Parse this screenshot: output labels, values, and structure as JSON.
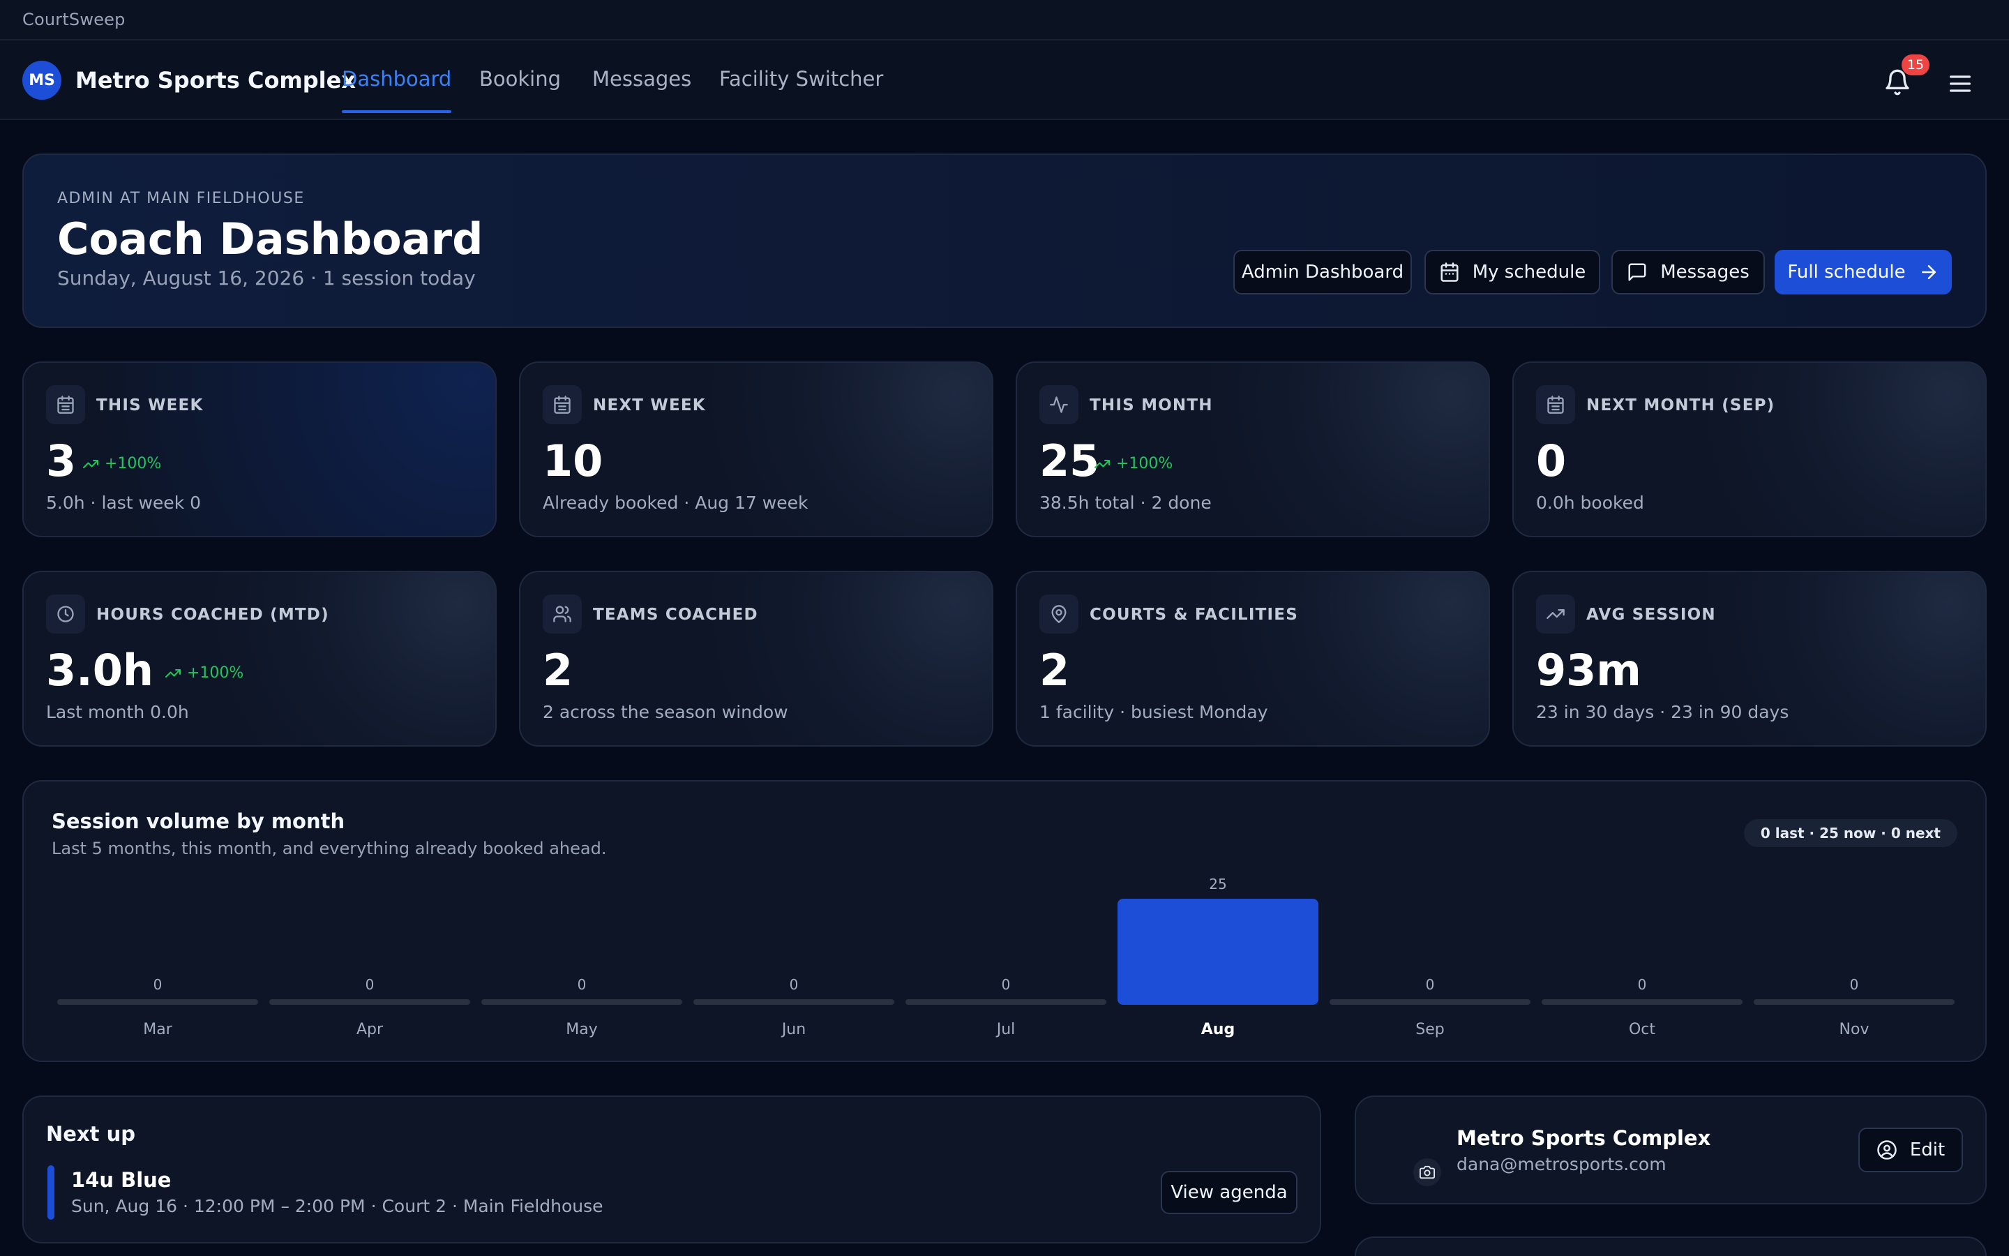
{
  "app": {
    "title": "CourtSweep"
  },
  "nav": {
    "avatar_initials": "MS",
    "org_name": "Metro Sports Complex",
    "tabs": [
      {
        "label": "Dashboard",
        "active": true
      },
      {
        "label": "Booking"
      },
      {
        "label": "Messages"
      },
      {
        "label": "Facility Switcher"
      }
    ],
    "notification_count": "15",
    "icons": {
      "notifications": "bell-icon",
      "menu": "hamburger-menu-icon"
    }
  },
  "hero": {
    "eyebrow": "ADMIN AT MAIN FIELDHOUSE",
    "title": "Coach Dashboard",
    "subtitle": "Sunday, August 16, 2026 · 1 session today",
    "buttons": {
      "admin": "Admin Dashboard",
      "schedule": "My schedule",
      "messages": "Messages",
      "full": "Full schedule"
    }
  },
  "stats": [
    {
      "label": "THIS WEEK",
      "icon": "calendar-icon",
      "value": "3",
      "delta": "+100%",
      "note": "5.0h · last week 0"
    },
    {
      "label": "NEXT WEEK",
      "icon": "calendar-icon",
      "value": "10",
      "note": "Already booked · Aug 17 week"
    },
    {
      "label": "THIS MONTH",
      "icon": "activity-icon",
      "value": "25",
      "delta": "+100%",
      "note": "38.5h total · 2 done"
    },
    {
      "label": "NEXT MONTH (SEP)",
      "icon": "calendar-icon",
      "value": "0",
      "note": "0.0h booked"
    },
    {
      "label": "HOURS COACHED (MTD)",
      "icon": "clock-icon",
      "value": "3.0h",
      "delta": "+100%",
      "note": "Last month 0.0h"
    },
    {
      "label": "TEAMS COACHED",
      "icon": "users-icon",
      "value": "2",
      "note": "2 across the season window"
    },
    {
      "label": "COURTS & FACILITIES",
      "icon": "map-pin-icon",
      "value": "2",
      "note": "1 facility · busiest Monday"
    },
    {
      "label": "AVG SESSION",
      "icon": "trending-up-icon",
      "value": "93m",
      "note": "23 in 30 days · 23 in 90 days"
    }
  ],
  "chart": {
    "title": "Session volume by month",
    "subtitle": "Last 5 months, this month, and everything already booked ahead.",
    "summary_pill": "0 last · 25 now · 0 next"
  },
  "chart_data": {
    "type": "bar",
    "categories": [
      "Mar",
      "Apr",
      "May",
      "Jun",
      "Jul",
      "Aug",
      "Sep",
      "Oct",
      "Nov"
    ],
    "values": [
      0,
      0,
      0,
      0,
      0,
      25,
      0,
      0,
      0
    ],
    "highlight": "Aug",
    "colors": {
      "highlight": "#1d4ed8",
      "empty": "#2a3242"
    }
  },
  "next_up": {
    "title": "Next up",
    "team": "14u Blue",
    "detail": "Sun, Aug 16 · 12:00 PM – 2:00 PM · Court 2 · Main Fieldhouse",
    "button": "View agenda"
  },
  "profile": {
    "name": "Metro Sports Complex",
    "email": "dana@metrosports.com",
    "edit_label": "Edit"
  },
  "colors": {
    "accent": "#1d4ed8",
    "positive": "#22c55e",
    "badge": "#ef4444",
    "background": "#050b1a"
  }
}
